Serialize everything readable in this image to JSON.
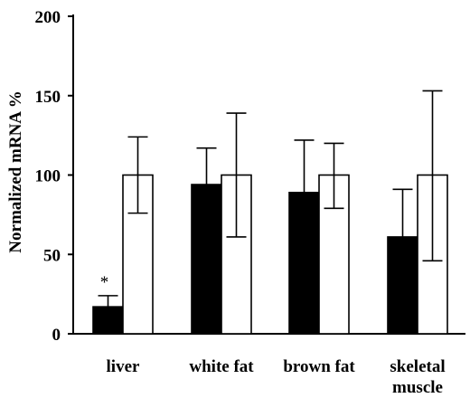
{
  "chart_data": {
    "type": "bar",
    "ylabel": "Normalized mRNA %",
    "ylim": [
      0,
      200
    ],
    "yticks": [
      0,
      50,
      100,
      150,
      200
    ],
    "categories": [
      {
        "lines": [
          "liver"
        ]
      },
      {
        "lines": [
          "white fat"
        ]
      },
      {
        "lines": [
          "brown fat"
        ]
      },
      {
        "lines": [
          "skeletal",
          "muscle"
        ]
      }
    ],
    "series": [
      {
        "fill": "#000000",
        "values": [
          17,
          94,
          89,
          61
        ],
        "error_upper": [
          24,
          117,
          122,
          91
        ],
        "error_lower": [
          17,
          94,
          89,
          61
        ]
      },
      {
        "fill": "#ffffff",
        "values": [
          100,
          100,
          100,
          100
        ],
        "error_upper": [
          124,
          139,
          120,
          153
        ],
        "error_lower": [
          76,
          61,
          79,
          46
        ]
      }
    ],
    "annotations": [
      {
        "text": "*",
        "category_index": 0,
        "series_index": 0,
        "value": 36
      }
    ],
    "grid": false,
    "legend": "none"
  }
}
